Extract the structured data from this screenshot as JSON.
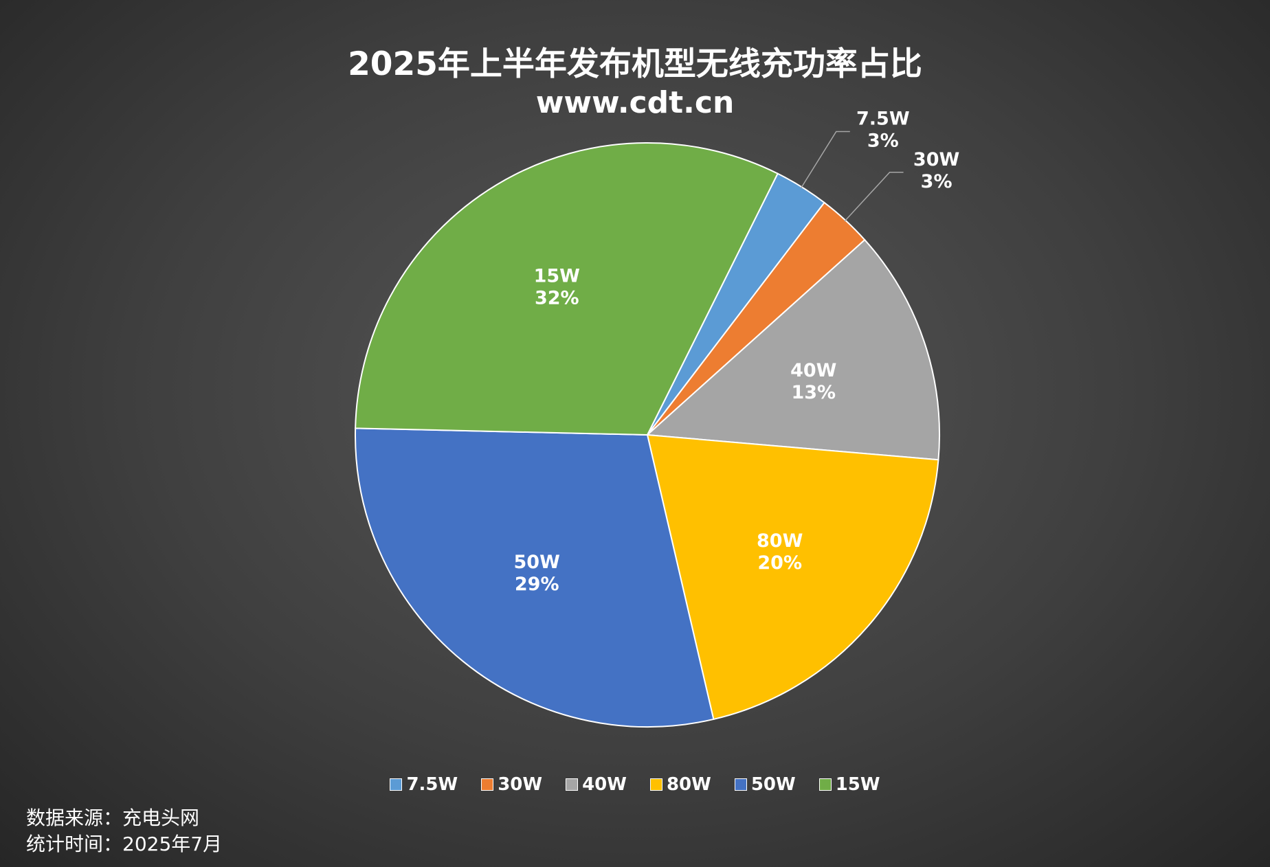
{
  "chart_data": {
    "type": "pie",
    "title": "2025年上半年发布机型无线充功率占比",
    "subtitle": "www.cdt.cn",
    "slices": [
      {
        "name": "7.5W",
        "value": 3,
        "label": "3%",
        "color": "#5b9bd5",
        "label_placement": "outside"
      },
      {
        "name": "30W",
        "value": 3,
        "label": "3%",
        "color": "#ed7d31",
        "label_placement": "outside"
      },
      {
        "name": "40W",
        "value": 13,
        "label": "13%",
        "color": "#a5a5a5",
        "label_placement": "inside"
      },
      {
        "name": "80W",
        "value": 20,
        "label": "20%",
        "color": "#ffc000",
        "label_placement": "inside"
      },
      {
        "name": "50W",
        "value": 29,
        "label": "29%",
        "color": "#4472c4",
        "label_placement": "inside"
      },
      {
        "name": "15W",
        "value": 32,
        "label": "32%",
        "color": "#70ad47",
        "label_placement": "inside"
      }
    ],
    "legend_position": "bottom"
  },
  "notes": {
    "source": "数据来源：充电头网",
    "date": "统计时间：2025年7月"
  }
}
